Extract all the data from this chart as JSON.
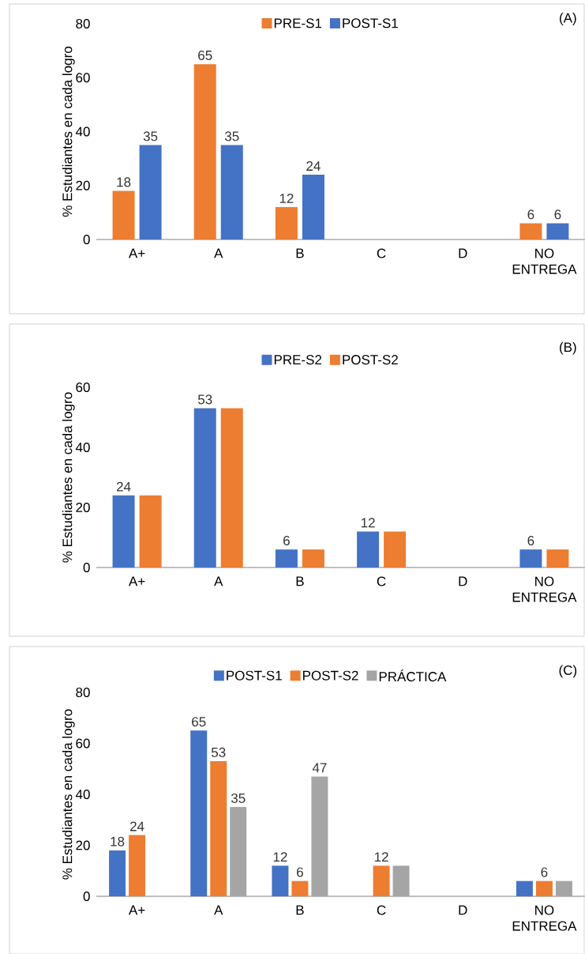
{
  "chart_data": [
    {
      "type": "bar",
      "title": "(A)",
      "ylabel": "% Estudiantes en cada logro",
      "categories": [
        "A+",
        "A",
        "B",
        "C",
        "D",
        "NO ENTREGA"
      ],
      "ylim": [
        0,
        80
      ],
      "yticks": [
        0,
        20,
        40,
        60,
        80
      ],
      "legend": "top",
      "series": [
        {
          "name": "PRE-S1",
          "color": "#ed7d31",
          "values": [
            18,
            65,
            12,
            0,
            0,
            6
          ],
          "value_labels": [
            "18",
            "65",
            "12",
            null,
            null,
            "6"
          ]
        },
        {
          "name": "POST-S1",
          "color": "#4472c4",
          "values": [
            35,
            35,
            24,
            0,
            0,
            6
          ],
          "value_labels": [
            "35",
            "35",
            "24",
            null,
            null,
            "6"
          ]
        }
      ]
    },
    {
      "type": "bar",
      "title": "(B)",
      "ylabel": "% Estudiantes en cada logro",
      "categories": [
        "A+",
        "A",
        "B",
        "C",
        "D",
        "NO ENTREGA"
      ],
      "ylim": [
        0,
        60
      ],
      "yticks": [
        0,
        20,
        40,
        60
      ],
      "legend": "top",
      "series": [
        {
          "name": "PRE-S2",
          "color": "#4472c4",
          "values": [
            24,
            53,
            6,
            12,
            0,
            6
          ],
          "value_labels": [
            "24",
            "53",
            "6",
            "12",
            null,
            "6"
          ]
        },
        {
          "name": "POST-S2",
          "color": "#ed7d31",
          "values": [
            24,
            53,
            6,
            12,
            0,
            6
          ],
          "value_labels": [
            null,
            null,
            null,
            null,
            null,
            null
          ]
        }
      ]
    },
    {
      "type": "bar",
      "title": "(C)",
      "ylabel": "% Estudiantes en cada logro",
      "categories": [
        "A+",
        "A",
        "B",
        "C",
        "D",
        "NO ENTREGA"
      ],
      "ylim": [
        0,
        80
      ],
      "yticks": [
        0,
        20,
        40,
        60,
        80
      ],
      "legend": "top",
      "series": [
        {
          "name": "POST-S1",
          "color": "#4472c4",
          "values": [
            18,
            65,
            12,
            0,
            0,
            6
          ],
          "value_labels": [
            "18",
            "65",
            "12",
            null,
            null,
            null
          ]
        },
        {
          "name": "POST-S2",
          "color": "#ed7d31",
          "values": [
            24,
            53,
            6,
            12,
            0,
            6
          ],
          "value_labels": [
            "24",
            "53",
            "6",
            "12",
            null,
            "6"
          ]
        },
        {
          "name": "PRÁCTICA",
          "color": "#a5a5a5",
          "values": [
            0,
            35,
            47,
            12,
            0,
            6
          ],
          "value_labels": [
            null,
            "35",
            "47",
            null,
            null,
            null
          ]
        }
      ]
    }
  ]
}
